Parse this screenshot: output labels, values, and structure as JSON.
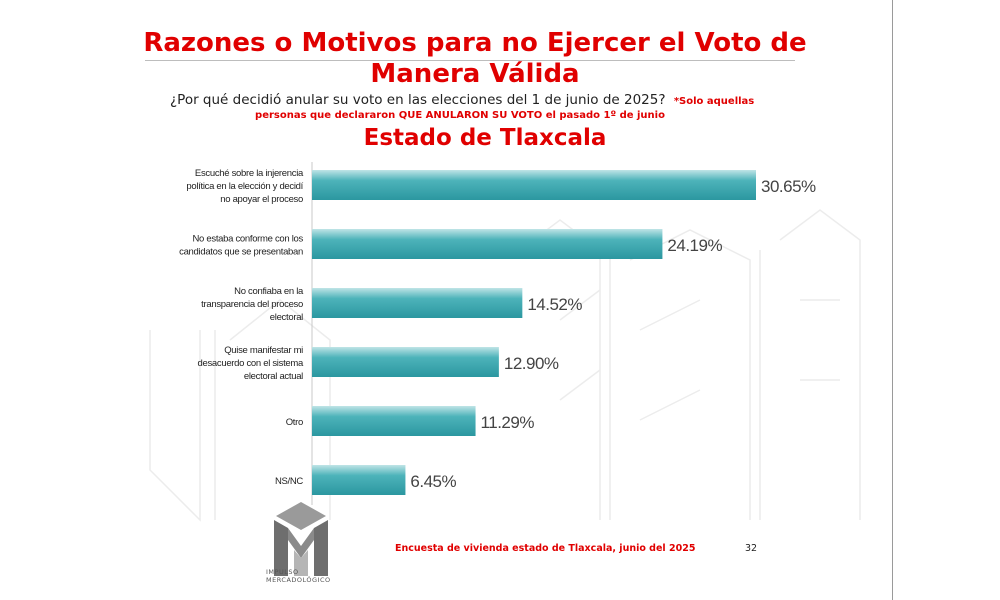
{
  "slide": {
    "title": "Razones o Motivos para no Ejercer el Voto de Manera Válida",
    "question": "¿Por qué decidió anular su voto en las elecciones del 1 de junio de 2025?",
    "note_part1": "*Solo aquellas",
    "note_part2": "personas que declararon QUE ANULARON SU VOTO el pasado 1º de junio",
    "subtitle": "Estado de Tlaxcala",
    "footer": "Encuesta de vivienda estado de Tlaxcala, junio   del 2025",
    "page_number": "32",
    "logo_text_line1": "IMPULSO",
    "logo_text_line2": "MERCADOLÓGICO"
  },
  "colors": {
    "accent_red": "#e00000",
    "bar_teal": "#3aa8b0",
    "bar_highlight": "#bfe4e6"
  },
  "chart_data": {
    "type": "bar",
    "orientation": "horizontal",
    "categories": [
      "Escuché sobre la injerencia política en la elección y decidí no apoyar el proceso",
      "No estaba conforme con los candidatos que se presentaban",
      "No confiaba en la transparencia del proceso electoral",
      "Quise manifestar mi desacuerdo con el sistema electoral actual",
      "Otro",
      "NS/NC"
    ],
    "category_lines": [
      [
        "Escuché sobre la injerencia",
        "política en la elección y decidí",
        "no apoyar el proceso"
      ],
      [
        "No estaba conforme con los",
        "candidatos que se presentaban"
      ],
      [
        "No confiaba en la",
        "transparencia del proceso",
        "electoral"
      ],
      [
        "Quise manifestar mi",
        "desacuerdo con el sistema",
        "electoral actual"
      ],
      [
        "Otro"
      ],
      [
        "NS/NC"
      ]
    ],
    "values": [
      30.65,
      24.19,
      14.52,
      12.9,
      11.29,
      6.45
    ],
    "value_labels": [
      "30.65%",
      "24.19%",
      "14.52%",
      "12.90%",
      "11.29%",
      "6.45%"
    ],
    "xlim": [
      0,
      30.65
    ],
    "grid": false,
    "legend": "none"
  }
}
